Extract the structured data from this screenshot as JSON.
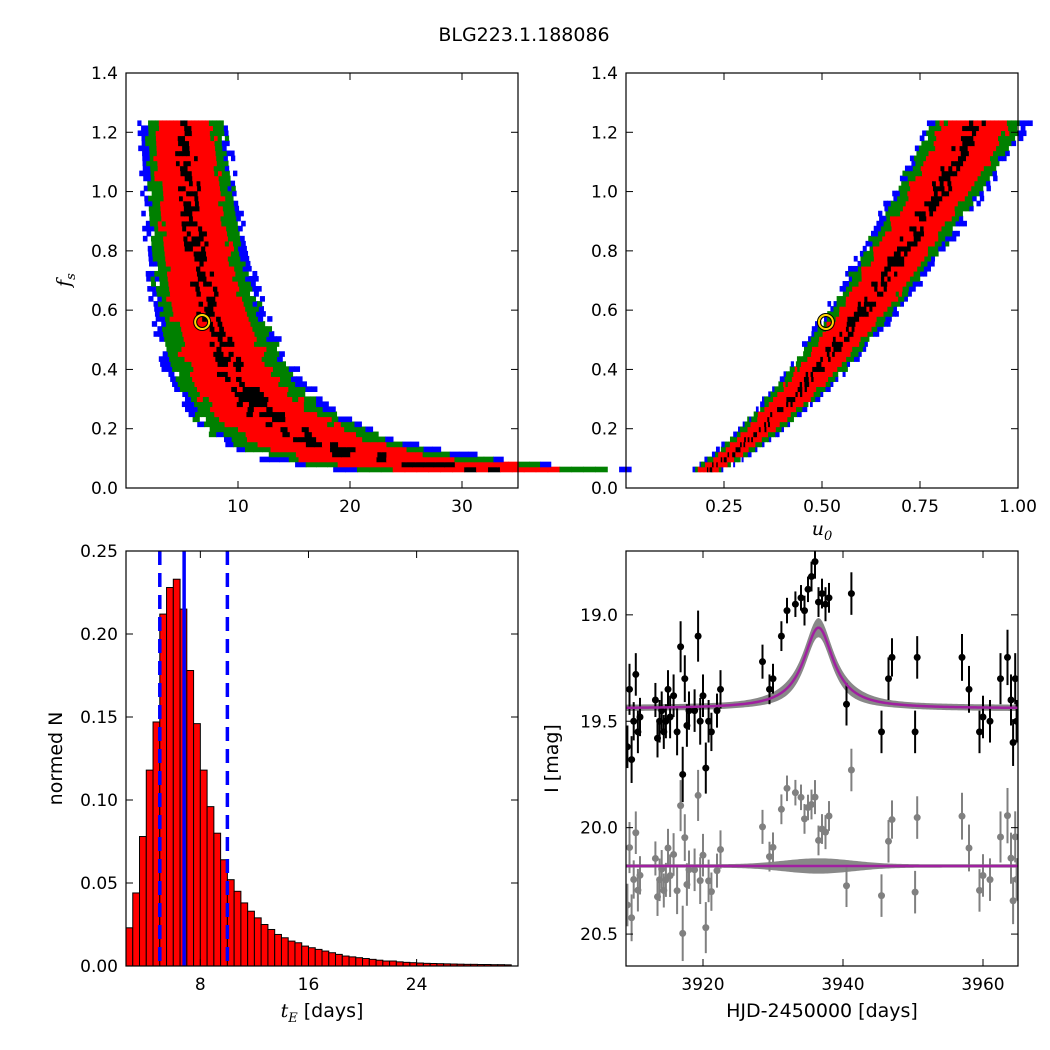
{
  "figure": {
    "title": "BLG223.1.188086"
  },
  "chart_data": [
    {
      "id": "fs-vs-tE",
      "type": "heatmap",
      "xlabel": "",
      "ylabel": "f_s",
      "ylabel_main": "f",
      "ylabel_sub": "s",
      "xlim": [
        0,
        35
      ],
      "ylim": [
        0.0,
        1.4
      ],
      "x_ticks": [
        10,
        20,
        30
      ],
      "x_tick_labels": [
        "10",
        "20",
        "30"
      ],
      "y_ticks": [
        0.0,
        0.2,
        0.4,
        0.6,
        0.8,
        1.0,
        1.2,
        1.4
      ],
      "y_tick_labels": [
        "0.0",
        "0.2",
        "0.4",
        "0.6",
        "0.8",
        "1.0",
        "1.2",
        "1.4"
      ],
      "confidence_colors": {
        "1sigma": "#000000",
        "2sigma": "#ff0000",
        "3sigma": "#008000",
        "4sigma": "#0000ff"
      },
      "best_fit": {
        "x": 6.8,
        "y": 0.56,
        "color": "#ffd700"
      }
    },
    {
      "id": "fs-vs-u0",
      "type": "heatmap",
      "xlabel": "u_0",
      "xlabel_main": "u",
      "xlabel_sub": "0",
      "ylabel": "",
      "xlim": [
        0.0,
        1.0
      ],
      "ylim": [
        0.0,
        1.4
      ],
      "x_ticks": [
        0.25,
        0.5,
        0.75,
        1.0
      ],
      "x_tick_labels": [
        "0.25",
        "0.50",
        "0.75",
        "1.00"
      ],
      "y_ticks": [
        0.0,
        0.2,
        0.4,
        0.6,
        0.8,
        1.0,
        1.2,
        1.4
      ],
      "y_tick_labels": [
        "0.0",
        "0.2",
        "0.4",
        "0.6",
        "0.8",
        "1.0",
        "1.2",
        "1.4"
      ],
      "confidence_colors": {
        "1sigma": "#000000",
        "2sigma": "#ff0000",
        "3sigma": "#008000",
        "4sigma": "#0000ff"
      },
      "best_fit": {
        "x": 0.51,
        "y": 0.56,
        "color": "#ffd700"
      }
    },
    {
      "id": "tE-histogram",
      "type": "bar",
      "xlabel": "t_E [days]",
      "xlabel_main": "t",
      "xlabel_sub": "E",
      "xlabel_rest": " [days]",
      "ylabel": "normed N",
      "xlim": [
        2.5,
        31.5
      ],
      "ylim": [
        0.0,
        0.25
      ],
      "x_ticks": [
        8,
        16,
        24
      ],
      "x_tick_labels": [
        "8",
        "16",
        "24"
      ],
      "y_ticks": [
        0.0,
        0.05,
        0.1,
        0.15,
        0.2,
        0.25
      ],
      "y_tick_labels": [
        "0.00",
        "0.05",
        "0.10",
        "0.15",
        "0.20",
        "0.25"
      ],
      "bin_width": 0.5,
      "bin_start": 2.5,
      "values": [
        0.023,
        0.044,
        0.078,
        0.118,
        0.147,
        0.212,
        0.228,
        0.233,
        0.215,
        0.178,
        0.146,
        0.118,
        0.096,
        0.08,
        0.064,
        0.052,
        0.045,
        0.038,
        0.033,
        0.029,
        0.025,
        0.022,
        0.019,
        0.017,
        0.015,
        0.014,
        0.012,
        0.011,
        0.01,
        0.009,
        0.008,
        0.007,
        0.006,
        0.0055,
        0.005,
        0.0045,
        0.004,
        0.0035,
        0.003,
        0.003,
        0.0025,
        0.0022,
        0.002,
        0.0018,
        0.0016,
        0.0015,
        0.0014,
        0.0013,
        0.0012,
        0.0011,
        0.001,
        0.001,
        0.0009,
        0.0009,
        0.0008,
        0.0008,
        0.0007
      ],
      "bar_color": "#ff0000",
      "median_line": 6.8,
      "lower_line": 5.0,
      "upper_line": 10.0,
      "line_color": "#0000ff"
    },
    {
      "id": "light-curve",
      "type": "scatter",
      "xlabel": "HJD-2450000 [days]",
      "ylabel": "I [mag]",
      "xlim": [
        3909,
        3965
      ],
      "ylim": [
        20.65,
        18.7
      ],
      "y_inverted": true,
      "x_ticks": [
        3920,
        3940,
        3960
      ],
      "x_tick_labels": [
        "3920",
        "3940",
        "3960"
      ],
      "y_ticks": [
        19.0,
        19.5,
        20.0,
        20.5
      ],
      "y_tick_labels": [
        "19.0",
        "19.5",
        "20.0",
        "20.5"
      ],
      "model": {
        "baseline": 19.44,
        "t0": 3936.5,
        "amp": 0.38,
        "tau": 2.6,
        "color": "#a020a0"
      },
      "residual_offset": 20.18,
      "data_color": "#000000",
      "residual_color": "#808080",
      "points": [
        {
          "x": 3909.2,
          "y": 19.62,
          "e": 0.1
        },
        {
          "x": 3909.5,
          "y": 19.35,
          "e": 0.12
        },
        {
          "x": 3909.8,
          "y": 19.68,
          "e": 0.11
        },
        {
          "x": 3910.1,
          "y": 19.5,
          "e": 0.09
        },
        {
          "x": 3910.4,
          "y": 19.28,
          "e": 0.1
        },
        {
          "x": 3910.7,
          "y": 19.55,
          "e": 0.1
        },
        {
          "x": 3911.0,
          "y": 19.48,
          "e": 0.09
        },
        {
          "x": 3913.2,
          "y": 19.4,
          "e": 0.08
        },
        {
          "x": 3913.5,
          "y": 19.58,
          "e": 0.09
        },
        {
          "x": 3913.8,
          "y": 19.5,
          "e": 0.1
        },
        {
          "x": 3914.1,
          "y": 19.45,
          "e": 0.09
        },
        {
          "x": 3914.4,
          "y": 19.55,
          "e": 0.08
        },
        {
          "x": 3914.7,
          "y": 19.5,
          "e": 0.08
        },
        {
          "x": 3915.0,
          "y": 19.35,
          "e": 0.09
        },
        {
          "x": 3915.3,
          "y": 19.48,
          "e": 0.1
        },
        {
          "x": 3915.8,
          "y": 19.38,
          "e": 0.1
        },
        {
          "x": 3916.3,
          "y": 19.55,
          "e": 0.11
        },
        {
          "x": 3916.8,
          "y": 19.15,
          "e": 0.12
        },
        {
          "x": 3917.1,
          "y": 19.75,
          "e": 0.13
        },
        {
          "x": 3917.4,
          "y": 19.3,
          "e": 0.11
        },
        {
          "x": 3917.7,
          "y": 19.52,
          "e": 0.1
        },
        {
          "x": 3918.0,
          "y": 19.45,
          "e": 0.09
        },
        {
          "x": 3918.8,
          "y": 19.45,
          "e": 0.1
        },
        {
          "x": 3919.3,
          "y": 19.1,
          "e": 0.12
        },
        {
          "x": 3919.6,
          "y": 19.5,
          "e": 0.11
        },
        {
          "x": 3920.0,
          "y": 19.38,
          "e": 0.1
        },
        {
          "x": 3920.4,
          "y": 19.72,
          "e": 0.12
        },
        {
          "x": 3920.8,
          "y": 19.5,
          "e": 0.1
        },
        {
          "x": 3921.2,
          "y": 19.55,
          "e": 0.09
        },
        {
          "x": 3922.0,
          "y": 19.45,
          "e": 0.08
        },
        {
          "x": 3922.5,
          "y": 19.35,
          "e": 0.09
        },
        {
          "x": 3928.5,
          "y": 19.22,
          "e": 0.08
        },
        {
          "x": 3929.5,
          "y": 19.35,
          "e": 0.07
        },
        {
          "x": 3930.0,
          "y": 19.3,
          "e": 0.07
        },
        {
          "x": 3931.2,
          "y": 19.1,
          "e": 0.07
        },
        {
          "x": 3932.0,
          "y": 18.98,
          "e": 0.06
        },
        {
          "x": 3933.2,
          "y": 18.95,
          "e": 0.06
        },
        {
          "x": 3934.0,
          "y": 18.92,
          "e": 0.06
        },
        {
          "x": 3934.5,
          "y": 18.98,
          "e": 0.07
        },
        {
          "x": 3935.0,
          "y": 18.88,
          "e": 0.06
        },
        {
          "x": 3935.5,
          "y": 18.82,
          "e": 0.07
        },
        {
          "x": 3936.0,
          "y": 18.75,
          "e": 0.08
        },
        {
          "x": 3936.5,
          "y": 18.94,
          "e": 0.07
        },
        {
          "x": 3937.0,
          "y": 18.9,
          "e": 0.07
        },
        {
          "x": 3937.5,
          "y": 18.95,
          "e": 0.08
        },
        {
          "x": 3938.0,
          "y": 18.92,
          "e": 0.07
        },
        {
          "x": 3940.5,
          "y": 19.42,
          "e": 0.1
        },
        {
          "x": 3941.2,
          "y": 18.9,
          "e": 0.1
        },
        {
          "x": 3945.5,
          "y": 19.55,
          "e": 0.1
        },
        {
          "x": 3946.5,
          "y": 19.3,
          "e": 0.1
        },
        {
          "x": 3947.0,
          "y": 19.2,
          "e": 0.09
        },
        {
          "x": 3950.3,
          "y": 19.55,
          "e": 0.1
        },
        {
          "x": 3950.6,
          "y": 19.2,
          "e": 0.1
        },
        {
          "x": 3957.0,
          "y": 19.2,
          "e": 0.11
        },
        {
          "x": 3958.0,
          "y": 19.35,
          "e": 0.11
        },
        {
          "x": 3959.5,
          "y": 19.55,
          "e": 0.1
        },
        {
          "x": 3960.0,
          "y": 19.48,
          "e": 0.1
        },
        {
          "x": 3961.0,
          "y": 19.5,
          "e": 0.1
        },
        {
          "x": 3962.5,
          "y": 19.3,
          "e": 0.12
        },
        {
          "x": 3963.5,
          "y": 19.2,
          "e": 0.13
        },
        {
          "x": 3964.0,
          "y": 19.4,
          "e": 0.12
        },
        {
          "x": 3964.3,
          "y": 19.6,
          "e": 0.11
        },
        {
          "x": 3964.6,
          "y": 19.3,
          "e": 0.12
        },
        {
          "x": 3964.8,
          "y": 19.5,
          "e": 0.1
        }
      ]
    }
  ]
}
